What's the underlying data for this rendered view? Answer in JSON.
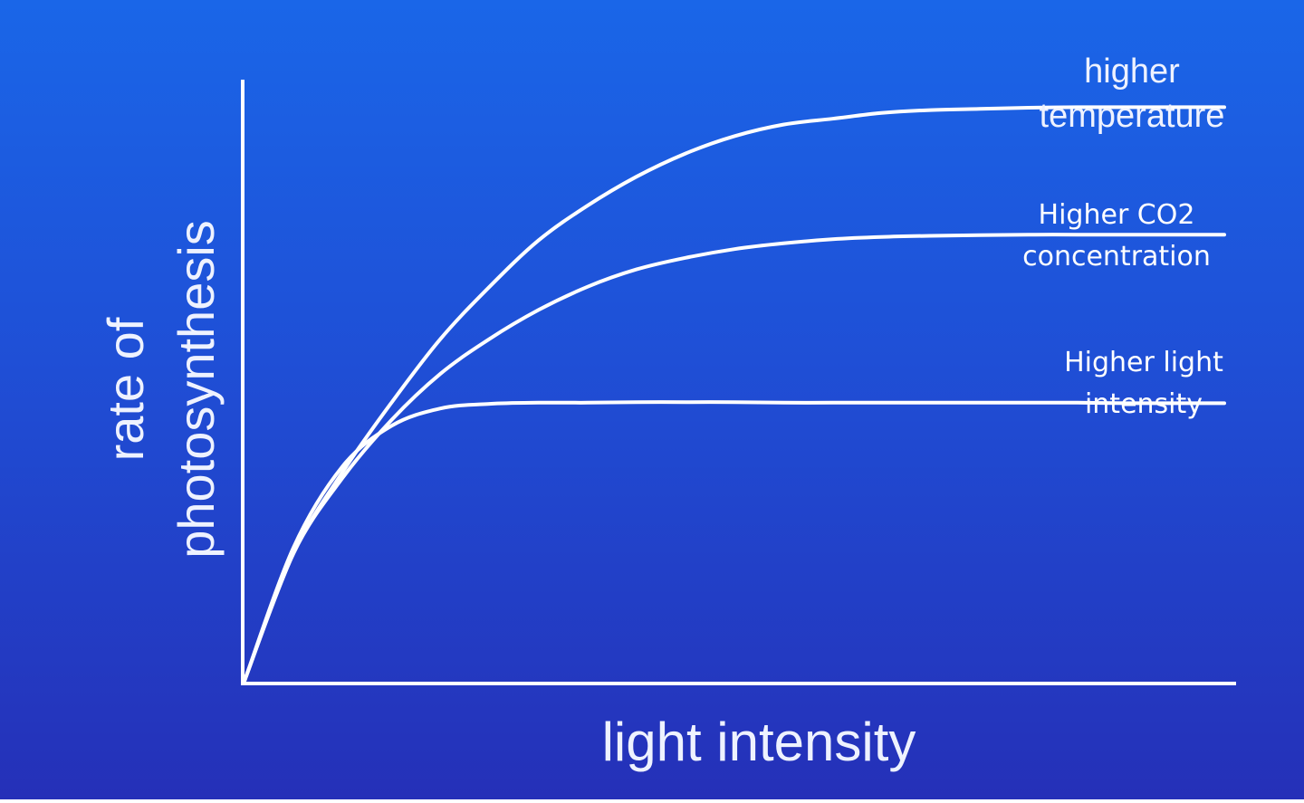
{
  "chart_data": {
    "type": "line",
    "title": "",
    "xlabel": "light intensity",
    "ylabel_lines": [
      "rate of",
      "photosynthesis"
    ],
    "xlim": [
      0,
      10
    ],
    "ylim": [
      0,
      10
    ],
    "grid": false,
    "legend": "labels placed at right end of each curve",
    "series": [
      {
        "name": "higher temperature",
        "label_lines": [
          "higher",
          "temperature"
        ],
        "x": [
          0,
          0.5,
          1,
          1.5,
          2,
          2.5,
          3,
          3.5,
          4,
          4.5,
          5,
          5.5,
          6,
          6.5,
          7,
          7.5,
          8,
          8.5,
          9,
          9.5,
          10
        ],
        "y": [
          0,
          2.2,
          3.6,
          4.8,
          5.9,
          6.8,
          7.6,
          8.2,
          8.7,
          9.1,
          9.4,
          9.6,
          9.7,
          9.8,
          9.85,
          9.87,
          9.89,
          9.9,
          9.9,
          9.9,
          9.9
        ]
      },
      {
        "name": "Higher CO2 concentration",
        "label_lines": [
          "Higher CO2",
          "concentration"
        ],
        "x": [
          0,
          0.5,
          1,
          1.5,
          2,
          2.5,
          3,
          3.5,
          4,
          4.5,
          5,
          5.5,
          6,
          6.5,
          7,
          7.5,
          8,
          8.5,
          9,
          9.5,
          10
        ],
        "y": [
          0,
          2.2,
          3.5,
          4.5,
          5.3,
          5.9,
          6.4,
          6.8,
          7.1,
          7.3,
          7.45,
          7.55,
          7.62,
          7.66,
          7.68,
          7.69,
          7.7,
          7.7,
          7.7,
          7.7,
          7.7
        ]
      },
      {
        "name": "Higher light intensity",
        "label_lines": [
          "Higher light",
          "intensity"
        ],
        "x": [
          0,
          0.5,
          1,
          1.5,
          2,
          2.5,
          3,
          3.5,
          4,
          4.5,
          5,
          5.5,
          6,
          6.5,
          7,
          7.5,
          8,
          8.5,
          9,
          9.5,
          10
        ],
        "y": [
          0,
          2.3,
          3.7,
          4.4,
          4.7,
          4.78,
          4.8,
          4.8,
          4.81,
          4.81,
          4.81,
          4.8,
          4.8,
          4.8,
          4.8,
          4.8,
          4.8,
          4.8,
          4.79,
          4.79,
          4.79
        ]
      }
    ]
  },
  "colors": {
    "background_top": "#1a66e8",
    "background_bottom": "#2530b8",
    "line": "#ffffff"
  }
}
